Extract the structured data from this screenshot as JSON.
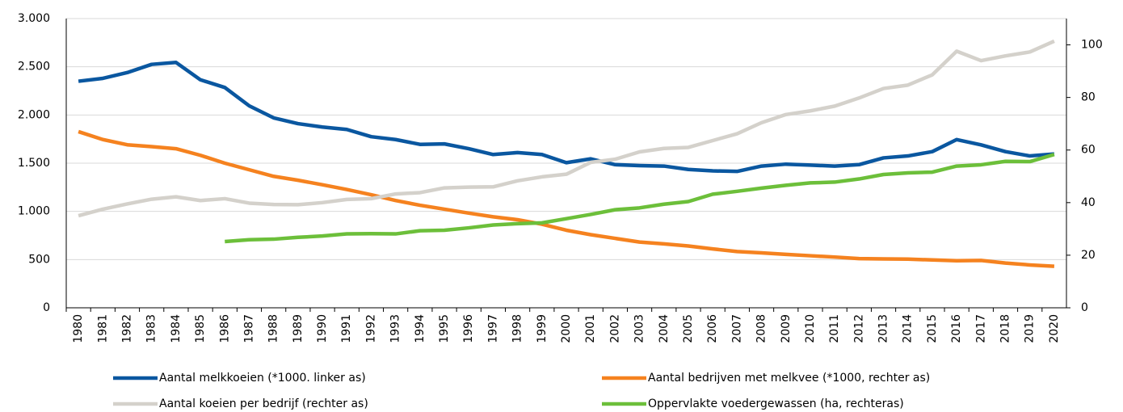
{
  "chart_data": {
    "type": "line",
    "categories": [
      "1980",
      "1981",
      "1982",
      "1983",
      "1984",
      "1985",
      "1986",
      "1987",
      "1988",
      "1989",
      "1990",
      "1991",
      "1992",
      "1993",
      "1994",
      "1995",
      "1996",
      "1997",
      "1998",
      "1999",
      "2000",
      "2001",
      "2002",
      "2003",
      "2004",
      "2005",
      "2006",
      "2007",
      "2008",
      "2009",
      "2010",
      "2011",
      "2012",
      "2013",
      "2014",
      "2015",
      "2016",
      "2017",
      "2018",
      "2019",
      "2020"
    ],
    "series": [
      {
        "name": "Aantal melkkoeien (*1000. linker as)",
        "color": "#0a57a0",
        "values": [
          2350,
          2380,
          2440,
          2525,
          2545,
          2365,
          2285,
          2095,
          1970,
          1910,
          1875,
          1850,
          1775,
          1745,
          1695,
          1700,
          1650,
          1590,
          1610,
          1590,
          1505,
          1545,
          1485,
          1475,
          1470,
          1435,
          1420,
          1415,
          1470,
          1490,
          1480,
          1470,
          1485,
          1555,
          1575,
          1620,
          1745,
          1690,
          1620,
          1575,
          1595
        ]
      },
      {
        "name": "Aantal bedrijven met melkvee (*1000, rechter as)",
        "color": "#f5821f",
        "axis": "y2",
        "values": [
          67,
          64,
          62,
          61.3,
          60.5,
          58,
          55,
          52.5,
          50,
          48.5,
          46.8,
          45,
          43,
          40.8,
          39,
          37.5,
          36,
          34.6,
          33.5,
          31.8,
          29.5,
          27.8,
          26.4,
          25,
          24.3,
          23.5,
          22.4,
          21.4,
          20.9,
          20.3,
          19.8,
          19.3,
          18.7,
          18.6,
          18.5,
          18.2,
          17.9,
          18,
          17,
          16.3,
          15.8
        ]
      },
      {
        "name": "Aantal koeien per bedrijf (rechter as)",
        "color": "#d4d1cb",
        "axis": "y2",
        "values": [
          35,
          37.5,
          39.5,
          41.3,
          42.2,
          40.8,
          41.5,
          39.8,
          39.3,
          39.2,
          40,
          41.2,
          41.5,
          43.3,
          43.8,
          45.6,
          45.9,
          46,
          48.3,
          49.8,
          50.8,
          55.3,
          56.5,
          59.3,
          60.6,
          61,
          63.6,
          66.2,
          70.4,
          73.5,
          74.9,
          76.7,
          79.8,
          83.4,
          84.7,
          88.6,
          97.6,
          94,
          95.8,
          97.3,
          101.4
        ]
      },
      {
        "name": "Oppervlakte voedergewassen (ha, rechteras)",
        "color": "#6cbf3a",
        "axis": "y2",
        "values": [
          null,
          null,
          null,
          null,
          null,
          null,
          25.2,
          25.9,
          26.1,
          26.8,
          27.3,
          28.1,
          28.2,
          28.1,
          29.3,
          29.5,
          30.4,
          31.5,
          32,
          32.3,
          33.9,
          35.5,
          37.3,
          38,
          39.4,
          40.4,
          43.2,
          44.3,
          45.5,
          46.6,
          47.5,
          47.8,
          49,
          50.7,
          51.3,
          51.6,
          53.9,
          54.4,
          55.7,
          55.6,
          58.3
        ]
      }
    ],
    "ylim": [
      0,
      3000
    ],
    "yticks": [
      {
        "value": 0,
        "label": "0"
      },
      {
        "value": 500,
        "label": "500"
      },
      {
        "value": 1000,
        "label": "1.000"
      },
      {
        "value": 1500,
        "label": "1.500"
      },
      {
        "value": 2000,
        "label": "2.000"
      },
      {
        "value": 2500,
        "label": "2.500"
      },
      {
        "value": 3000,
        "label": "3.000"
      }
    ],
    "y2lim": [
      0,
      110
    ],
    "y2ticks": [
      0,
      20,
      40,
      60,
      80,
      100
    ],
    "grid": true
  }
}
